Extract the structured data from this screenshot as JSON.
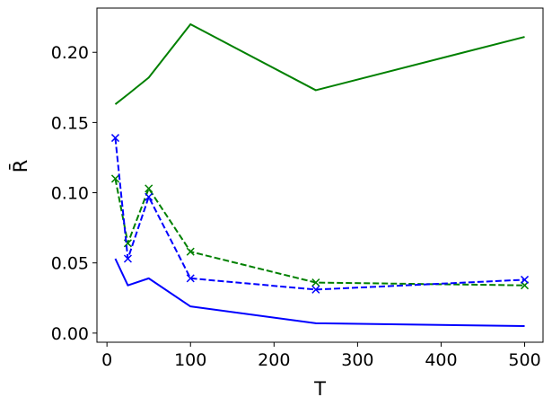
{
  "chart_data": {
    "type": "line",
    "xlabel": "T",
    "ylabel": "R̄",
    "xlim": [
      -12,
      522
    ],
    "ylim": [
      -0.0065,
      0.2315
    ],
    "xticks": [
      0,
      100,
      200,
      300,
      400,
      500
    ],
    "xtick_labels": [
      "0",
      "100",
      "200",
      "300",
      "400",
      "500"
    ],
    "yticks": [
      0.0,
      0.05,
      0.1,
      0.15,
      0.2
    ],
    "ytick_labels": [
      "0.00",
      "0.05",
      "0.10",
      "0.15",
      "0.20"
    ],
    "grid": false,
    "legend": false,
    "x": [
      10,
      25,
      50,
      100,
      250,
      500
    ],
    "series": [
      {
        "color": "#008000",
        "linestyle": "solid",
        "marker": "none",
        "values": [
          0.163,
          0.17,
          0.182,
          0.22,
          0.173,
          0.211
        ]
      },
      {
        "color": "#0000ff",
        "linestyle": "solid",
        "marker": "none",
        "values": [
          0.053,
          0.034,
          0.039,
          0.019,
          0.007,
          0.005
        ]
      },
      {
        "color": "#008000",
        "linestyle": "dashed",
        "marker": "x",
        "values": [
          0.11,
          0.064,
          0.103,
          0.058,
          0.036,
          0.034
        ]
      },
      {
        "color": "#0000ff",
        "linestyle": "dashed",
        "marker": "x",
        "values": [
          0.139,
          0.053,
          0.097,
          0.039,
          0.031,
          0.038
        ]
      }
    ]
  }
}
